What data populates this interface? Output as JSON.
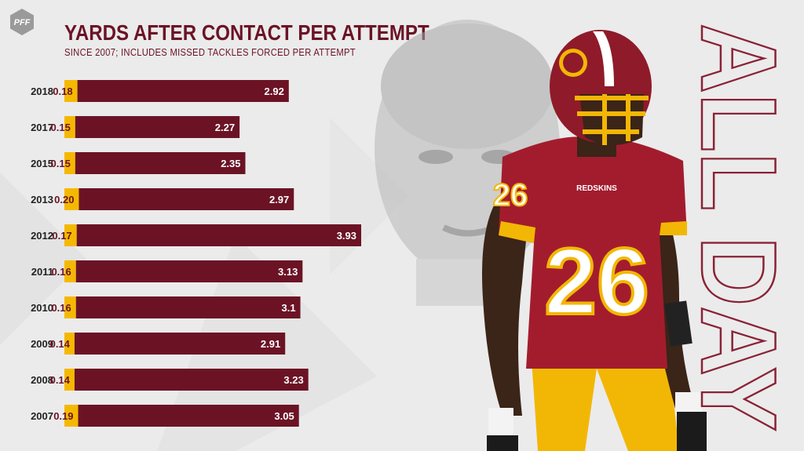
{
  "logo": {
    "text": "PFF"
  },
  "title": "YARDS AFTER CONTACT PER ATTEMPT",
  "subtitle": "SINCE 2007; INCLUDES MISSED TACKLES FORCED PER ATTEMPT",
  "side_text": "ALL DAY",
  "player": {
    "jersey_number": "26",
    "team_wordmark": "REDSKINS"
  },
  "colors": {
    "maroon": "#6b1325",
    "gold": "#f5b800",
    "background": "#ebebeb"
  },
  "chart_data": {
    "type": "bar",
    "orientation": "horizontal",
    "stacked": true,
    "categories": [
      "2018",
      "2017",
      "2015",
      "2013",
      "2012",
      "2011",
      "2010",
      "2009",
      "2008",
      "2007"
    ],
    "series": [
      {
        "values": [
          0.18,
          0.15,
          0.15,
          0.2,
          0.17,
          0.16,
          0.16,
          0.14,
          0.14,
          0.19
        ],
        "labels": [
          "0.18",
          "0.15",
          "0.15",
          "0.20",
          "0.17",
          "0.16",
          "0.16",
          "0.14",
          "0.14",
          "0.19"
        ],
        "color": "#f5b800"
      },
      {
        "values": [
          2.92,
          2.27,
          2.35,
          2.97,
          3.93,
          3.13,
          3.1,
          2.91,
          3.23,
          3.05
        ],
        "labels": [
          "2.92",
          "2.27",
          "2.35",
          "2.97",
          "3.93",
          "3.13",
          "3.1",
          "2.91",
          "3.23",
          "3.05"
        ],
        "color": "#6b1325"
      }
    ]
  }
}
